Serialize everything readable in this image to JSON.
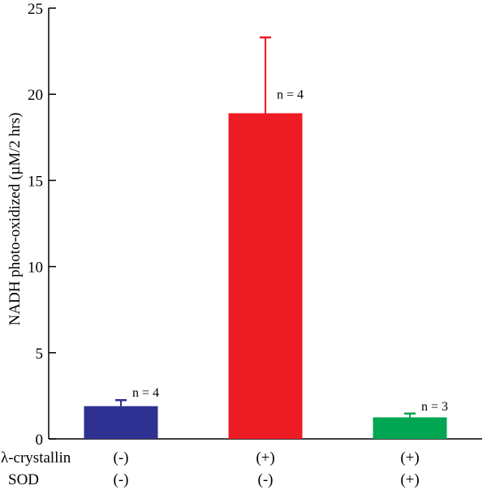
{
  "chart_data": {
    "type": "bar",
    "ylabel": "NADH photo-oxidized (µM/2 hrs)",
    "ylim": [
      0,
      25
    ],
    "yticks": [
      0,
      5,
      10,
      15,
      20,
      25
    ],
    "grid": false,
    "bars": [
      {
        "value": 1.9,
        "error": 0.35,
        "n_label": "n = 4",
        "color": "#2e3192",
        "lambda": "(-)",
        "sod": "(-)"
      },
      {
        "value": 18.9,
        "error": 4.4,
        "n_label": "n = 4",
        "color": "#ed1c24",
        "lambda": "(+)",
        "sod": "(-)"
      },
      {
        "value": 1.25,
        "error": 0.22,
        "n_label": "n = 3",
        "color": "#00a651",
        "lambda": "(+)",
        "sod": "(+)"
      }
    ],
    "row_labels": {
      "lambda": "λ-crystallin",
      "sod": "SOD"
    }
  }
}
